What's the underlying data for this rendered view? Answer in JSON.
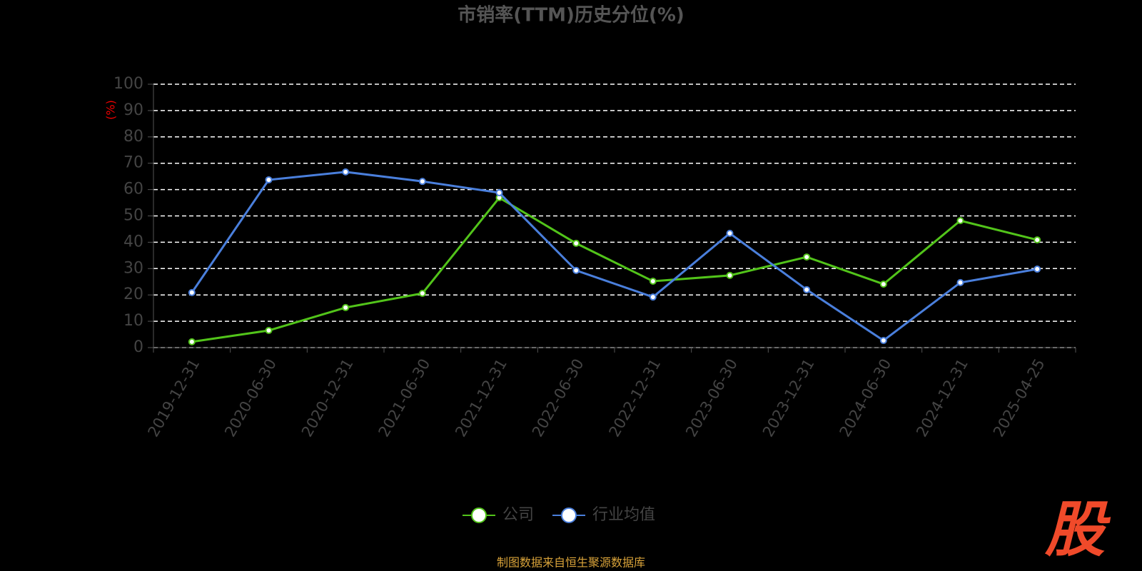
{
  "chart_data": {
    "type": "line",
    "title": "市销率(TTM)历史分位(%)",
    "y_label": "(%)",
    "categories": [
      "2019-12-31",
      "2020-06-30",
      "2020-12-31",
      "2021-06-30",
      "2021-12-31",
      "2022-06-30",
      "2022-12-31",
      "2023-06-30",
      "2023-12-31",
      "2024-06-30",
      "2024-12-31",
      "2025-04-25"
    ],
    "series": [
      {
        "name": "公司",
        "color": "#52c41a",
        "values": [
          2.2,
          6.5,
          15.2,
          20.6,
          56.9,
          39.6,
          25.2,
          27.4,
          34.4,
          24.1,
          48.2,
          40.9
        ]
      },
      {
        "name": "行业均值",
        "color": "#4a7fdc",
        "values": [
          20.9,
          63.7,
          66.7,
          63.1,
          58.8,
          29.3,
          19.2,
          43.4,
          22.0,
          2.7,
          24.7,
          29.8
        ]
      }
    ],
    "ylim": [
      0,
      100
    ],
    "yticks": [
      0,
      10,
      20,
      30,
      40,
      50,
      60,
      70,
      80,
      90,
      100
    ],
    "grid": true,
    "legend": "bottom",
    "source": "制图数据来自恒生聚源数据库",
    "logo": "股"
  }
}
